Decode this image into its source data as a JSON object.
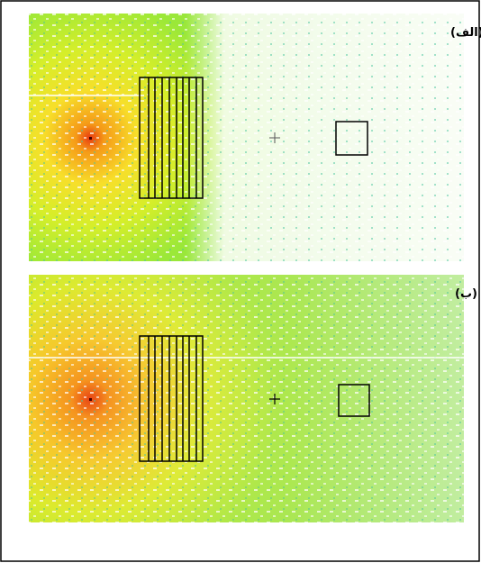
{
  "panels": [
    {
      "label": "(الف)"
    },
    {
      "label": "(ب)"
    }
  ]
}
